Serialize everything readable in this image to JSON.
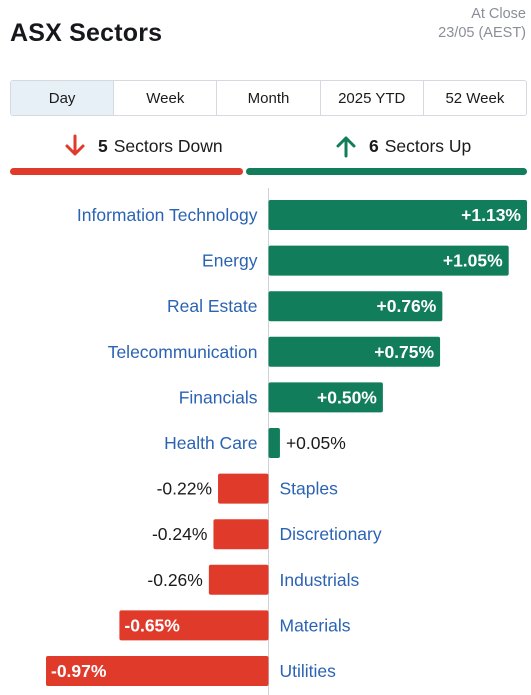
{
  "header": {
    "title": "ASX Sectors",
    "close_label": "At Close",
    "close_date": "23/05 (AEST)"
  },
  "tabs": [
    {
      "label": "Day",
      "active": true
    },
    {
      "label": "Week",
      "active": false
    },
    {
      "label": "Month",
      "active": false
    },
    {
      "label": "2025 YTD",
      "active": false
    },
    {
      "label": "52 Week",
      "active": false
    }
  ],
  "summary": {
    "down_count": "5",
    "down_text": "Sectors Down",
    "up_count": "6",
    "up_text": "Sectors Up"
  },
  "colors": {
    "up": "#117d5a",
    "down": "#e03a2b",
    "link": "#2b63b3"
  },
  "chart_data": {
    "type": "bar",
    "orientation": "horizontal",
    "categories": [
      "Information Technology",
      "Energy",
      "Real Estate",
      "Telecommunication",
      "Financials",
      "Health Care",
      "Staples",
      "Discretionary",
      "Industrials",
      "Materials",
      "Utilities"
    ],
    "values": [
      1.13,
      1.05,
      0.76,
      0.75,
      0.5,
      0.05,
      -0.22,
      -0.24,
      -0.26,
      -0.65,
      -0.97
    ],
    "value_labels": [
      "+1.13%",
      "+1.05%",
      "+0.76%",
      "+0.75%",
      "+0.50%",
      "+0.05%",
      "-0.22%",
      "-0.24%",
      "-0.26%",
      "-0.65%",
      "-0.97%"
    ],
    "xlim": [
      -0.97,
      1.13
    ]
  }
}
